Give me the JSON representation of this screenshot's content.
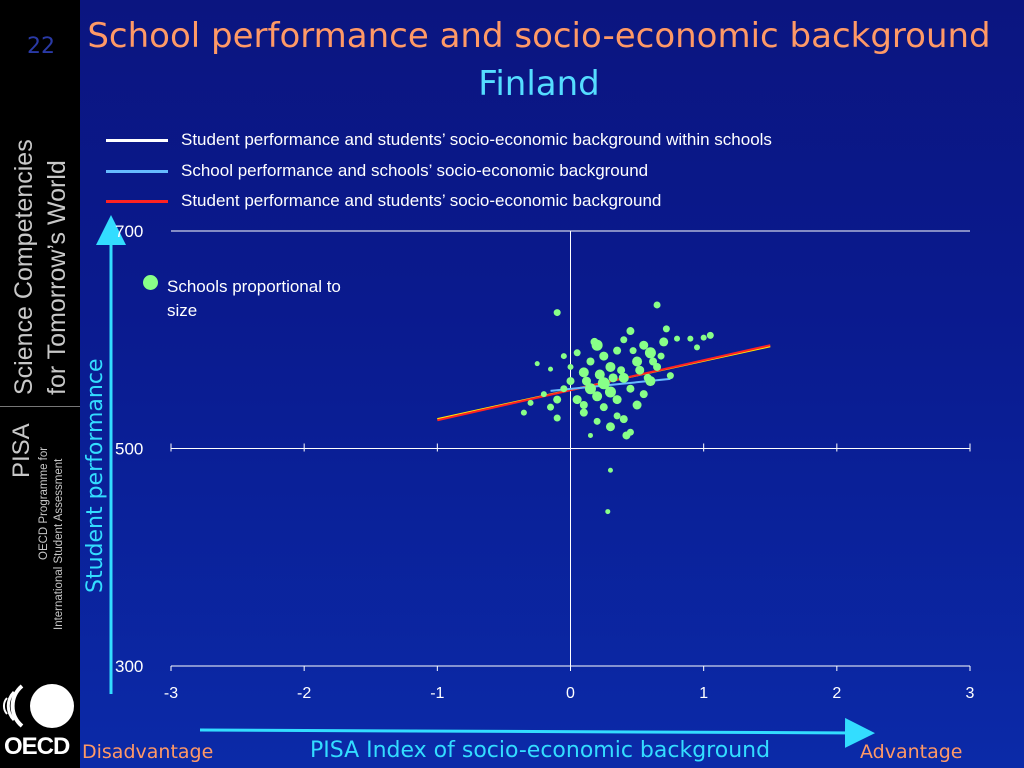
{
  "slide": {
    "number": "22"
  },
  "sidebar": {
    "series_line1": "Science Competencies",
    "series_line2": "for Tomorrow’s World",
    "pisa": "PISA",
    "program_line1": "OECD Programme for",
    "program_line2": "International Student Assessment",
    "logo_text": "OECD"
  },
  "chart_data": {
    "type": "scatter",
    "title": "School performance and socio-economic background",
    "subtitle": "Finland",
    "xlabel": "PISA Index of socio-economic background",
    "ylabel": "Student performance",
    "x_left_label": "Disadvantage",
    "x_right_label": "Advantage",
    "xlim": [
      -3,
      3
    ],
    "ylim": [
      300,
      700
    ],
    "x_ticks": [
      "-3",
      "-2",
      "-1",
      "0",
      "1",
      "2",
      "3"
    ],
    "y_ticks": [
      "300",
      "500",
      "700"
    ],
    "grid": {
      "horizontal": true,
      "vertical_zero_line": true
    },
    "legend": [
      {
        "label": "Student performance and students’ socio-economic background within schools",
        "color": "#ffffff"
      },
      {
        "label": "School performance and schools’ socio-economic background",
        "color": "#66bbff"
      },
      {
        "label": "Student performance and students’ socio-economic background",
        "color": "#ff2222"
      }
    ],
    "note": "Schools proportional to size",
    "marker_color": "#88ff88",
    "lines": [
      {
        "x": [
          -1.0,
          1.5
        ],
        "y": [
          527,
          594
        ],
        "color": "#ffee00",
        "width": 2
      },
      {
        "x": [
          -1.0,
          1.5
        ],
        "y": [
          526,
          595
        ],
        "color": "#ff2222",
        "width": 2
      },
      {
        "x": [
          -0.15,
          0.75
        ],
        "y": [
          553,
          564
        ],
        "color": "#66bbff",
        "width": 2
      }
    ],
    "points": [
      [
        -0.1,
        625,
        5
      ],
      [
        0.65,
        632,
        5
      ],
      [
        -0.25,
        578,
        3
      ],
      [
        -0.15,
        573,
        3
      ],
      [
        0.0,
        562,
        6
      ],
      [
        0.1,
        570,
        8
      ],
      [
        0.2,
        595,
        9
      ],
      [
        0.25,
        585,
        7
      ],
      [
        0.3,
        575,
        8
      ],
      [
        0.35,
        590,
        6
      ],
      [
        0.4,
        600,
        5
      ],
      [
        0.45,
        608,
        6
      ],
      [
        0.5,
        580,
        8
      ],
      [
        0.55,
        595,
        7
      ],
      [
        0.6,
        588,
        9
      ],
      [
        0.65,
        575,
        6
      ],
      [
        0.7,
        598,
        7
      ],
      [
        0.72,
        610,
        5
      ],
      [
        0.8,
        601,
        4
      ],
      [
        0.9,
        601,
        4
      ],
      [
        1.0,
        602,
        4
      ],
      [
        1.05,
        604,
        5
      ],
      [
        0.95,
        593,
        4
      ],
      [
        0.75,
        567,
        5
      ],
      [
        0.05,
        545,
        7
      ],
      [
        0.1,
        540,
        6
      ],
      [
        0.15,
        555,
        9
      ],
      [
        0.2,
        548,
        8
      ],
      [
        0.25,
        560,
        10
      ],
      [
        0.3,
        552,
        9
      ],
      [
        0.35,
        545,
        7
      ],
      [
        0.4,
        565,
        8
      ],
      [
        0.45,
        555,
        6
      ],
      [
        0.5,
        540,
        7
      ],
      [
        0.55,
        550,
        6
      ],
      [
        0.6,
        562,
        8
      ],
      [
        -0.05,
        555,
        5
      ],
      [
        -0.1,
        545,
        6
      ],
      [
        -0.15,
        538,
        5
      ],
      [
        -0.2,
        550,
        4
      ],
      [
        -0.3,
        542,
        4
      ],
      [
        -0.35,
        533,
        4
      ],
      [
        -0.1,
        528,
        5
      ],
      [
        0.1,
        533,
        6
      ],
      [
        0.2,
        525,
        5
      ],
      [
        0.3,
        520,
        7
      ],
      [
        0.4,
        527,
        6
      ],
      [
        0.45,
        515,
        5
      ],
      [
        0.25,
        538,
        6
      ],
      [
        0.35,
        530,
        5
      ],
      [
        0.15,
        512,
        3
      ],
      [
        0.42,
        512,
        6
      ],
      [
        0.3,
        480,
        3
      ],
      [
        0.28,
        442,
        3
      ],
      [
        0.05,
        588,
        5
      ],
      [
        0.15,
        580,
        6
      ],
      [
        0.12,
        562,
        7
      ],
      [
        0.22,
        568,
        8
      ],
      [
        0.32,
        565,
        7
      ],
      [
        0.52,
        572,
        7
      ],
      [
        0.58,
        565,
        6
      ],
      [
        0.62,
        580,
        6
      ],
      [
        0.68,
        585,
        5
      ],
      [
        0.0,
        575,
        4
      ],
      [
        -0.05,
        585,
        4
      ],
      [
        0.47,
        590,
        5
      ],
      [
        0.38,
        572,
        6
      ],
      [
        0.18,
        598,
        6
      ]
    ]
  }
}
